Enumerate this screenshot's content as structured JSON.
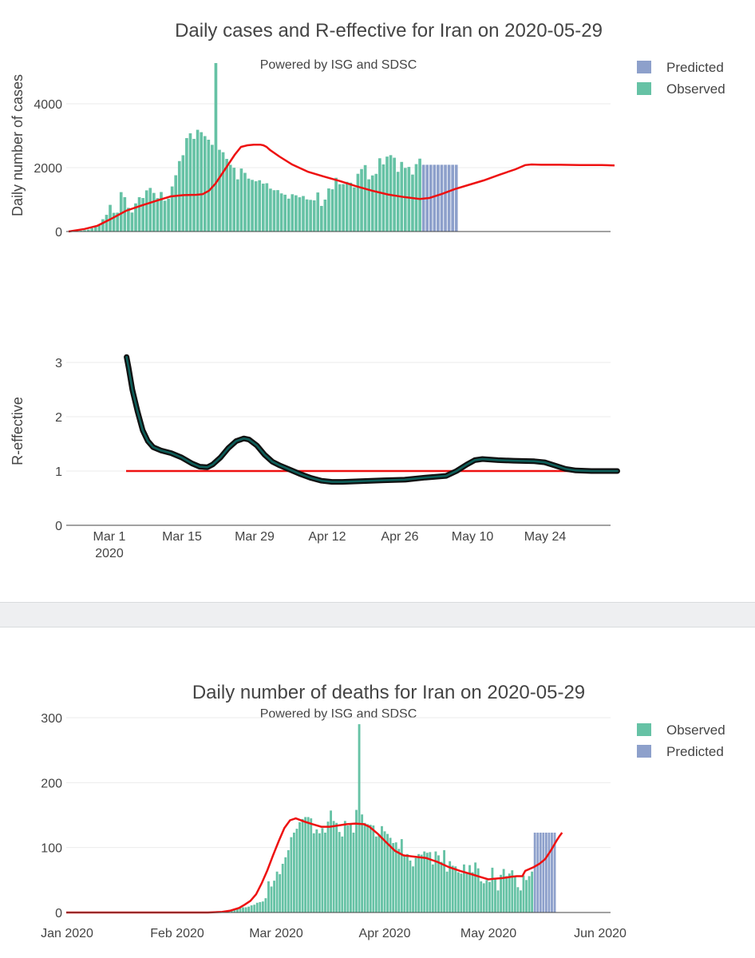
{
  "colors": {
    "observed": "#66c2a5",
    "predicted": "#8da0cb",
    "trend": "#ee1111",
    "reff": "#0d5f5a",
    "reff_edge": "#111111"
  },
  "chart_data": [
    {
      "id": "cases",
      "type": "bar",
      "title": "Daily cases and R-effective for Iran on 2020-05-29",
      "subtitle": "Powered by ISG and SDSC",
      "ylabel": "Daily number of cases",
      "yticks": [
        0,
        2000,
        4000
      ],
      "ylim": [
        0,
        5400
      ],
      "start_date": "2020-02-21",
      "legend": [
        "Predicted",
        "Observed"
      ],
      "observed": [
        5,
        13,
        18,
        28,
        43,
        61,
        106,
        143,
        205,
        385,
        523,
        835,
        586,
        591,
        1234,
        1076,
        743,
        595,
        881,
        1075,
        1049,
        1289,
        1365,
        1209,
        1046,
        1237,
        966,
        1028,
        1411,
        1762,
        2206,
        2389,
        2926,
        3076,
        2901,
        3186,
        3111,
        2988,
        2875,
        2715,
        5275,
        2560,
        2483,
        2274,
        2089,
        1997,
        1634,
        1972,
        1837,
        1657,
        1617,
        1574,
        1606,
        1499,
        1512,
        1343,
        1294,
        1297,
        1194,
        1153,
        1030,
        1168,
        1134,
        1073,
        1112,
        1006,
        991,
        976,
        1223,
        802,
        1000,
        1349,
        1323,
        1683,
        1481,
        1485,
        1556,
        1529,
        1383,
        1808,
        1957,
        2080,
        1635,
        1757,
        1806,
        2294,
        2102,
        2346,
        2392,
        2311,
        1869,
        2180,
        1991,
        2023,
        1784,
        2111,
        2282
      ],
      "predicted": [
        2090,
        2090,
        2090,
        2090,
        2090,
        2090,
        2090,
        2090,
        2090,
        2090
      ],
      "trend": [
        [
          0,
          0
        ],
        [
          5,
          80
        ],
        [
          9,
          180
        ],
        [
          13,
          380
        ],
        [
          18,
          650
        ],
        [
          23,
          820
        ],
        [
          28,
          980
        ],
        [
          32,
          1100
        ],
        [
          36,
          1140
        ],
        [
          40,
          1150
        ],
        [
          42,
          1170
        ],
        [
          44,
          1280
        ],
        [
          46,
          1500
        ],
        [
          48,
          1800
        ],
        [
          50,
          2100
        ],
        [
          52,
          2400
        ],
        [
          54,
          2650
        ],
        [
          56,
          2700
        ],
        [
          58,
          2720
        ],
        [
          60,
          2720
        ],
        [
          61,
          2700
        ],
        [
          62,
          2650
        ],
        [
          63,
          2560
        ],
        [
          66,
          2350
        ],
        [
          70,
          2100
        ],
        [
          75,
          1870
        ],
        [
          80,
          1720
        ],
        [
          85,
          1580
        ],
        [
          90,
          1420
        ],
        [
          95,
          1280
        ],
        [
          100,
          1160
        ],
        [
          105,
          1080
        ],
        [
          110,
          1020
        ],
        [
          113,
          1050
        ],
        [
          117,
          1180
        ],
        [
          121,
          1330
        ],
        [
          125,
          1450
        ],
        [
          130,
          1600
        ],
        [
          135,
          1780
        ],
        [
          140,
          1950
        ],
        [
          143,
          2080
        ],
        [
          145,
          2100
        ],
        [
          148,
          2090
        ],
        [
          154,
          2090
        ],
        [
          160,
          2080
        ],
        [
          167,
          2080
        ],
        [
          171,
          2070
        ]
      ]
    },
    {
      "id": "reff",
      "type": "line",
      "ylabel": "R-effective",
      "yticks": [
        0,
        1,
        2,
        3
      ],
      "ylim": [
        0,
        3.5
      ],
      "xticks": [
        "Mar 1",
        "Mar 15",
        "Mar 29",
        "Apr 12",
        "Apr 26",
        "May 10",
        "May 24"
      ],
      "xtick_sub": "2020",
      "reference_value": 1,
      "series": [
        [
          0.4,
          3.1
        ],
        [
          0.8,
          2.9
        ],
        [
          1.5,
          2.5
        ],
        [
          2.5,
          2.1
        ],
        [
          3.5,
          1.75
        ],
        [
          4.5,
          1.55
        ],
        [
          5.5,
          1.44
        ],
        [
          7,
          1.38
        ],
        [
          9,
          1.33
        ],
        [
          11,
          1.25
        ],
        [
          13,
          1.14
        ],
        [
          14.5,
          1.08
        ],
        [
          16,
          1.07
        ],
        [
          17,
          1.12
        ],
        [
          18.5,
          1.25
        ],
        [
          20,
          1.42
        ],
        [
          21.5,
          1.55
        ],
        [
          23,
          1.6
        ],
        [
          24,
          1.58
        ],
        [
          25.5,
          1.47
        ],
        [
          27,
          1.3
        ],
        [
          28.5,
          1.17
        ],
        [
          30,
          1.1
        ],
        [
          32,
          1.02
        ],
        [
          34,
          0.94
        ],
        [
          36,
          0.87
        ],
        [
          38,
          0.82
        ],
        [
          40,
          0.8
        ],
        [
          42,
          0.8
        ],
        [
          45,
          0.81
        ],
        [
          50,
          0.83
        ],
        [
          54,
          0.84
        ],
        [
          58,
          0.88
        ],
        [
          62,
          0.91
        ],
        [
          64,
          1.0
        ],
        [
          66,
          1.12
        ],
        [
          67.5,
          1.2
        ],
        [
          69,
          1.22
        ],
        [
          72,
          1.2
        ],
        [
          75,
          1.19
        ],
        [
          79,
          1.18
        ],
        [
          81,
          1.16
        ],
        [
          83,
          1.1
        ],
        [
          85,
          1.04
        ],
        [
          87,
          1.01
        ],
        [
          90,
          1.0
        ],
        [
          94,
          1.0
        ],
        [
          95,
          1.0
        ]
      ]
    },
    {
      "id": "deaths",
      "type": "bar",
      "title": "Daily number of deaths for Iran on 2020-05-29",
      "subtitle": "Powered by ISG and SDSC",
      "yticks": [
        0,
        100,
        200,
        300
      ],
      "ylim": [
        0,
        300
      ],
      "xticks": [
        "Jan 2020",
        "Feb 2020",
        "Mar 2020",
        "Apr 2020",
        "May 2020",
        "Jun 2020"
      ],
      "start_date": "2020-01-01",
      "legend": [
        "Observed",
        "Predicted"
      ],
      "observed": [
        2,
        0,
        1,
        1,
        2,
        3,
        4,
        5,
        7,
        8,
        8,
        9,
        11,
        12,
        15,
        16,
        17,
        22,
        48,
        40,
        49,
        63,
        59,
        75,
        85,
        96,
        116,
        123,
        129,
        139,
        144,
        147,
        147,
        145,
        122,
        128,
        122,
        130,
        123,
        140,
        157,
        141,
        138,
        124,
        117,
        141,
        134,
        136,
        123,
        158,
        290,
        151,
        138,
        136,
        135,
        134,
        117,
        121,
        133,
        125,
        121,
        115,
        107,
        108,
        98,
        113,
        88,
        90,
        80,
        71,
        84,
        90,
        89,
        94,
        92,
        93,
        74,
        94,
        88,
        78,
        96,
        63,
        79,
        72,
        71,
        62,
        60,
        74,
        60,
        73,
        62,
        77,
        68,
        48,
        45,
        50,
        47,
        69,
        51,
        34,
        58,
        67,
        56,
        60,
        65,
        55,
        39,
        34,
        57,
        50,
        56,
        63
      ],
      "observed_start_index": 53,
      "predicted": [
        123,
        123,
        123,
        123,
        123,
        123,
        123,
        123
      ],
      "trend": [
        [
          0,
          0
        ],
        [
          50,
          0
        ],
        [
          55,
          1
        ],
        [
          58,
          3
        ],
        [
          61,
          7
        ],
        [
          63,
          12
        ],
        [
          65,
          18
        ],
        [
          67,
          28
        ],
        [
          69,
          45
        ],
        [
          71,
          65
        ],
        [
          73,
          88
        ],
        [
          75,
          110
        ],
        [
          77,
          130
        ],
        [
          79,
          142
        ],
        [
          81,
          145
        ],
        [
          84,
          140
        ],
        [
          87,
          136
        ],
        [
          90,
          132
        ],
        [
          93,
          132
        ],
        [
          96,
          134
        ],
        [
          99,
          136
        ],
        [
          102,
          137
        ],
        [
          105,
          136
        ],
        [
          107,
          132
        ],
        [
          110,
          121
        ],
        [
          113,
          108
        ],
        [
          116,
          95
        ],
        [
          119,
          88
        ],
        [
          123,
          86
        ],
        [
          127,
          84
        ],
        [
          131,
          78
        ],
        [
          135,
          70
        ],
        [
          139,
          64
        ],
        [
          143,
          59
        ],
        [
          146,
          55
        ],
        [
          149,
          51
        ],
        [
          151,
          52
        ],
        [
          154,
          53
        ],
        [
          157,
          55
        ],
        [
          159,
          56
        ],
        [
          161,
          56
        ],
        [
          162,
          64
        ],
        [
          165,
          70
        ],
        [
          167,
          75
        ],
        [
          169,
          82
        ],
        [
          171,
          95
        ],
        [
          173,
          110
        ],
        [
          174,
          117
        ],
        [
          175,
          123
        ]
      ]
    }
  ]
}
